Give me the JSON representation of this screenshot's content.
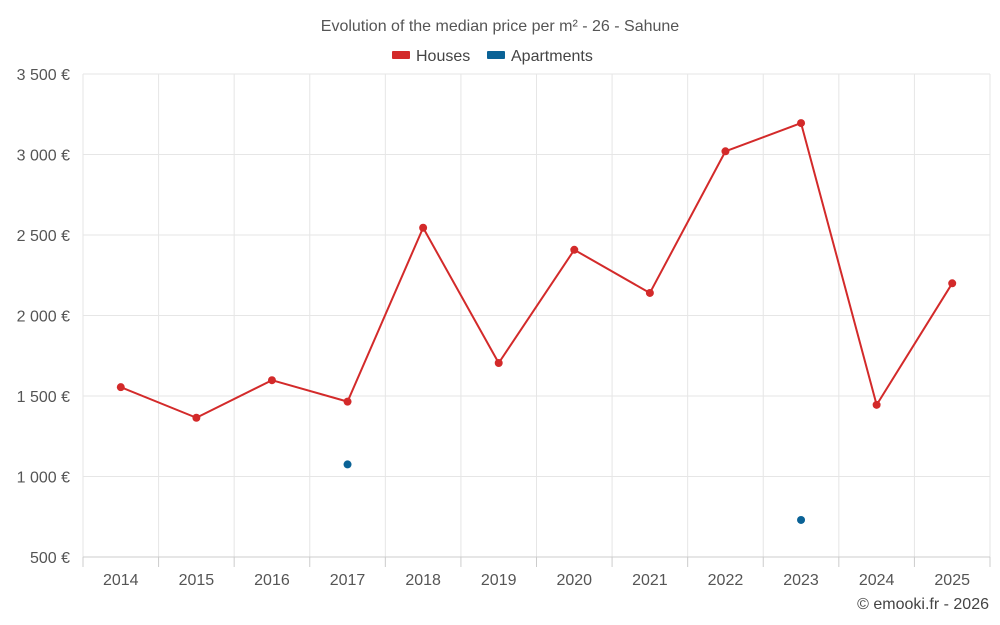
{
  "chart_data": {
    "type": "line",
    "title": "Evolution of the median price per m² - 26 - Sahune",
    "xlabel": "",
    "ylabel": "",
    "categories": [
      "2014",
      "2015",
      "2016",
      "2017",
      "2018",
      "2019",
      "2020",
      "2021",
      "2022",
      "2023",
      "2024",
      "2025"
    ],
    "ylim": [
      500,
      3500
    ],
    "yticks": [
      500,
      1000,
      1500,
      2000,
      2500,
      3000,
      3500
    ],
    "ytick_labels": [
      "500 €",
      "1 000 €",
      "1 500 €",
      "2 000 €",
      "2 500 €",
      "3 000 €",
      "3 500 €"
    ],
    "grid": true,
    "legend_position": "top-center",
    "series": [
      {
        "name": "Houses",
        "color": "#d32a2a",
        "values": [
          1555,
          1365,
          1598,
          1465,
          2545,
          1705,
          2408,
          2140,
          3020,
          3195,
          1445,
          2200
        ]
      },
      {
        "name": "Apartments",
        "color": "#0a6296",
        "values": [
          null,
          null,
          null,
          1075,
          null,
          null,
          null,
          null,
          null,
          730,
          null,
          null
        ]
      }
    ],
    "credit": "© emooki.fr - 2026"
  }
}
